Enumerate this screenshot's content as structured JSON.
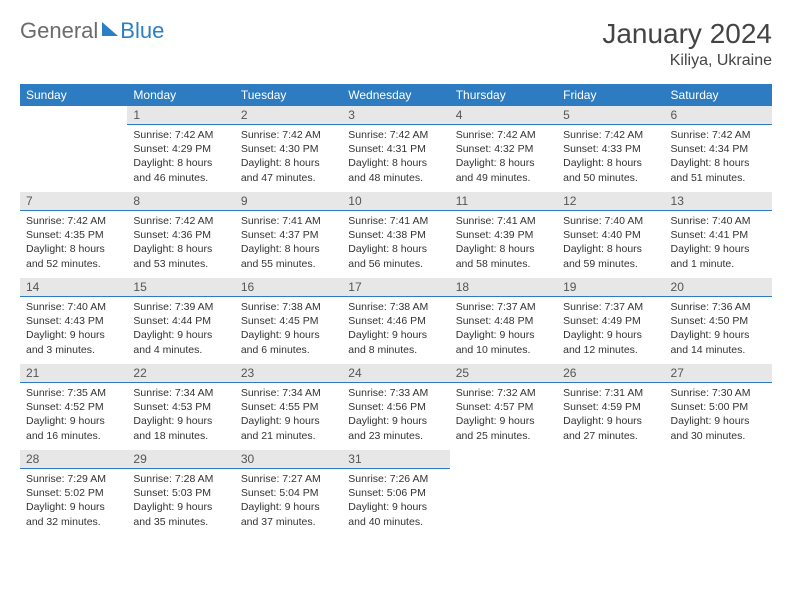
{
  "logo": {
    "part1": "General",
    "part2": "Blue"
  },
  "title": "January 2024",
  "location": "Kiliya, Ukraine",
  "colors": {
    "header_bg": "#2d7cc1",
    "header_text": "#ffffff",
    "daynum_bg": "#e7e7e7",
    "daynum_border": "#2d7cc1",
    "page_bg": "#ffffff",
    "text": "#333333",
    "logo_gray": "#6b6b6b",
    "logo_blue": "#2b7fc5"
  },
  "weekdays": [
    "Sunday",
    "Monday",
    "Tuesday",
    "Wednesday",
    "Thursday",
    "Friday",
    "Saturday"
  ],
  "weeks": [
    [
      {
        "empty": true
      },
      {
        "n": "1",
        "sr": "Sunrise: 7:42 AM",
        "ss": "Sunset: 4:29 PM",
        "d1": "Daylight: 8 hours",
        "d2": "and 46 minutes."
      },
      {
        "n": "2",
        "sr": "Sunrise: 7:42 AM",
        "ss": "Sunset: 4:30 PM",
        "d1": "Daylight: 8 hours",
        "d2": "and 47 minutes."
      },
      {
        "n": "3",
        "sr": "Sunrise: 7:42 AM",
        "ss": "Sunset: 4:31 PM",
        "d1": "Daylight: 8 hours",
        "d2": "and 48 minutes."
      },
      {
        "n": "4",
        "sr": "Sunrise: 7:42 AM",
        "ss": "Sunset: 4:32 PM",
        "d1": "Daylight: 8 hours",
        "d2": "and 49 minutes."
      },
      {
        "n": "5",
        "sr": "Sunrise: 7:42 AM",
        "ss": "Sunset: 4:33 PM",
        "d1": "Daylight: 8 hours",
        "d2": "and 50 minutes."
      },
      {
        "n": "6",
        "sr": "Sunrise: 7:42 AM",
        "ss": "Sunset: 4:34 PM",
        "d1": "Daylight: 8 hours",
        "d2": "and 51 minutes."
      }
    ],
    [
      {
        "n": "7",
        "sr": "Sunrise: 7:42 AM",
        "ss": "Sunset: 4:35 PM",
        "d1": "Daylight: 8 hours",
        "d2": "and 52 minutes."
      },
      {
        "n": "8",
        "sr": "Sunrise: 7:42 AM",
        "ss": "Sunset: 4:36 PM",
        "d1": "Daylight: 8 hours",
        "d2": "and 53 minutes."
      },
      {
        "n": "9",
        "sr": "Sunrise: 7:41 AM",
        "ss": "Sunset: 4:37 PM",
        "d1": "Daylight: 8 hours",
        "d2": "and 55 minutes."
      },
      {
        "n": "10",
        "sr": "Sunrise: 7:41 AM",
        "ss": "Sunset: 4:38 PM",
        "d1": "Daylight: 8 hours",
        "d2": "and 56 minutes."
      },
      {
        "n": "11",
        "sr": "Sunrise: 7:41 AM",
        "ss": "Sunset: 4:39 PM",
        "d1": "Daylight: 8 hours",
        "d2": "and 58 minutes."
      },
      {
        "n": "12",
        "sr": "Sunrise: 7:40 AM",
        "ss": "Sunset: 4:40 PM",
        "d1": "Daylight: 8 hours",
        "d2": "and 59 minutes."
      },
      {
        "n": "13",
        "sr": "Sunrise: 7:40 AM",
        "ss": "Sunset: 4:41 PM",
        "d1": "Daylight: 9 hours",
        "d2": "and 1 minute."
      }
    ],
    [
      {
        "n": "14",
        "sr": "Sunrise: 7:40 AM",
        "ss": "Sunset: 4:43 PM",
        "d1": "Daylight: 9 hours",
        "d2": "and 3 minutes."
      },
      {
        "n": "15",
        "sr": "Sunrise: 7:39 AM",
        "ss": "Sunset: 4:44 PM",
        "d1": "Daylight: 9 hours",
        "d2": "and 4 minutes."
      },
      {
        "n": "16",
        "sr": "Sunrise: 7:38 AM",
        "ss": "Sunset: 4:45 PM",
        "d1": "Daylight: 9 hours",
        "d2": "and 6 minutes."
      },
      {
        "n": "17",
        "sr": "Sunrise: 7:38 AM",
        "ss": "Sunset: 4:46 PM",
        "d1": "Daylight: 9 hours",
        "d2": "and 8 minutes."
      },
      {
        "n": "18",
        "sr": "Sunrise: 7:37 AM",
        "ss": "Sunset: 4:48 PM",
        "d1": "Daylight: 9 hours",
        "d2": "and 10 minutes."
      },
      {
        "n": "19",
        "sr": "Sunrise: 7:37 AM",
        "ss": "Sunset: 4:49 PM",
        "d1": "Daylight: 9 hours",
        "d2": "and 12 minutes."
      },
      {
        "n": "20",
        "sr": "Sunrise: 7:36 AM",
        "ss": "Sunset: 4:50 PM",
        "d1": "Daylight: 9 hours",
        "d2": "and 14 minutes."
      }
    ],
    [
      {
        "n": "21",
        "sr": "Sunrise: 7:35 AM",
        "ss": "Sunset: 4:52 PM",
        "d1": "Daylight: 9 hours",
        "d2": "and 16 minutes."
      },
      {
        "n": "22",
        "sr": "Sunrise: 7:34 AM",
        "ss": "Sunset: 4:53 PM",
        "d1": "Daylight: 9 hours",
        "d2": "and 18 minutes."
      },
      {
        "n": "23",
        "sr": "Sunrise: 7:34 AM",
        "ss": "Sunset: 4:55 PM",
        "d1": "Daylight: 9 hours",
        "d2": "and 21 minutes."
      },
      {
        "n": "24",
        "sr": "Sunrise: 7:33 AM",
        "ss": "Sunset: 4:56 PM",
        "d1": "Daylight: 9 hours",
        "d2": "and 23 minutes."
      },
      {
        "n": "25",
        "sr": "Sunrise: 7:32 AM",
        "ss": "Sunset: 4:57 PM",
        "d1": "Daylight: 9 hours",
        "d2": "and 25 minutes."
      },
      {
        "n": "26",
        "sr": "Sunrise: 7:31 AM",
        "ss": "Sunset: 4:59 PM",
        "d1": "Daylight: 9 hours",
        "d2": "and 27 minutes."
      },
      {
        "n": "27",
        "sr": "Sunrise: 7:30 AM",
        "ss": "Sunset: 5:00 PM",
        "d1": "Daylight: 9 hours",
        "d2": "and 30 minutes."
      }
    ],
    [
      {
        "n": "28",
        "sr": "Sunrise: 7:29 AM",
        "ss": "Sunset: 5:02 PM",
        "d1": "Daylight: 9 hours",
        "d2": "and 32 minutes."
      },
      {
        "n": "29",
        "sr": "Sunrise: 7:28 AM",
        "ss": "Sunset: 5:03 PM",
        "d1": "Daylight: 9 hours",
        "d2": "and 35 minutes."
      },
      {
        "n": "30",
        "sr": "Sunrise: 7:27 AM",
        "ss": "Sunset: 5:04 PM",
        "d1": "Daylight: 9 hours",
        "d2": "and 37 minutes."
      },
      {
        "n": "31",
        "sr": "Sunrise: 7:26 AM",
        "ss": "Sunset: 5:06 PM",
        "d1": "Daylight: 9 hours",
        "d2": "and 40 minutes."
      },
      {
        "empty": true
      },
      {
        "empty": true
      },
      {
        "empty": true
      }
    ]
  ]
}
